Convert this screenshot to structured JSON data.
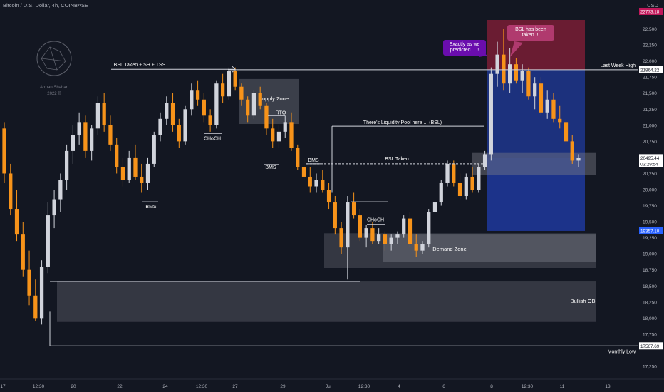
{
  "header": {
    "title": "Bitcoin / U.S. Dollar, 4h, COINBASE",
    "currency": "USD"
  },
  "logo": {
    "line1": "Arman Shaban",
    "line2": "2022 ®"
  },
  "chart_data": {
    "type": "candlestick",
    "y_axis": {
      "min": 17050,
      "max": 22950,
      "ticks": [
        22500,
        22250,
        22000,
        21750,
        21500,
        21250,
        21000,
        20750,
        20500,
        20250,
        20000,
        19750,
        19500,
        19250,
        19000,
        18750,
        18500,
        18250,
        18000,
        17750,
        17250
      ]
    },
    "x_axis": {
      "labels": [
        "17",
        "12:30",
        "20",
        "22",
        "24",
        "12:30",
        "27",
        "29",
        "Jul",
        "12:30",
        "4",
        "6",
        "8",
        "12:30",
        "11",
        "13"
      ]
    },
    "price_labels": [
      {
        "value": "22773.18",
        "price": 22773,
        "color": "#c2185b"
      },
      {
        "value": "21871.71",
        "price": 21872,
        "color": "#2a2e39"
      },
      {
        "value": "21864.22",
        "price": 21864,
        "color": "#ffffff"
      },
      {
        "value": "20495.44",
        "price": 20495,
        "color": "#ffffff",
        "extra": "03:29:54"
      },
      {
        "value": "19357.10",
        "price": 19357,
        "color": "#2962ff"
      },
      {
        "value": "17567.69",
        "price": 17568,
        "color": "#ffffff"
      }
    ],
    "zones": [
      {
        "label": "Supply Zone"
      },
      {
        "label": "Demand Zone"
      },
      {
        "label": "Bullish OB"
      }
    ],
    "annotations": [
      {
        "text": "BSL Taken + SH + TSS",
        "price": 21872
      },
      {
        "text": "CHoCH",
        "price": 20873
      },
      {
        "text": "BMS",
        "price": 19810
      },
      {
        "text": "RTO",
        "price": 21150
      },
      {
        "text": "BMS",
        "price": 20390
      },
      {
        "text": "BMS",
        "price": 20400
      },
      {
        "text": "There's Liquidity Pool here ... (BSL)",
        "price": 20985
      },
      {
        "text": "BSL Taken",
        "price": 20400
      },
      {
        "text": "CHoCH",
        "price": 19460
      },
      {
        "text": "Last Week High",
        "price": 21864
      },
      {
        "text": "Monthly Low",
        "price": 17568
      }
    ],
    "callouts": [
      {
        "text": "Exactly as we predicted ... !",
        "color": "#6a0dad"
      },
      {
        "text": "BSL has been taken !!!",
        "color": "#b03a6e"
      }
    ],
    "position": {
      "entry": 20495,
      "target": 22773,
      "stop": 19357
    },
    "colors": {
      "up": "#d1d4dc",
      "down": "#f7931a",
      "background": "#131722"
    },
    "series": [
      {
        "name": "",
        "ohlc": [
          [
            20950,
            21050,
            20100,
            20250
          ],
          [
            20250,
            20400,
            19600,
            19700
          ],
          [
            19700,
            20000,
            19200,
            19300
          ],
          [
            19300,
            19500,
            18650,
            18750
          ],
          [
            18750,
            19050,
            18200,
            18350
          ],
          [
            18350,
            18600,
            17950,
            18000
          ],
          [
            18000,
            18900,
            17900,
            18800
          ],
          [
            18800,
            19800,
            18700,
            19600
          ],
          [
            19600,
            20000,
            19400,
            19850
          ],
          [
            19850,
            20250,
            19650,
            20150
          ],
          [
            20150,
            20700,
            20000,
            20600
          ],
          [
            20600,
            21000,
            20400,
            20850
          ],
          [
            20850,
            21200,
            20700,
            21050
          ],
          [
            21050,
            21150,
            20500,
            20600
          ],
          [
            20600,
            21000,
            20450,
            20950
          ],
          [
            20950,
            21450,
            20850,
            21350
          ],
          [
            21350,
            21500,
            20900,
            21000
          ],
          [
            21000,
            21150,
            20600,
            20700
          ],
          [
            20700,
            20800,
            20250,
            20350
          ],
          [
            20350,
            20500,
            20050,
            20150
          ],
          [
            20150,
            20600,
            20100,
            20500
          ],
          [
            20500,
            20700,
            20150,
            20200
          ],
          [
            20200,
            20400,
            19950,
            20100
          ],
          [
            20100,
            20500,
            20000,
            20400
          ],
          [
            20400,
            20900,
            20350,
            20850
          ],
          [
            20850,
            21200,
            20750,
            21100
          ],
          [
            21100,
            21450,
            21000,
            21350
          ],
          [
            21350,
            21500,
            20900,
            21000
          ],
          [
            21000,
            21100,
            20650,
            20750
          ],
          [
            20750,
            21300,
            20700,
            21250
          ],
          [
            21250,
            21650,
            21150,
            21550
          ],
          [
            21550,
            21700,
            21300,
            21400
          ],
          [
            21400,
            21500,
            21050,
            21150
          ],
          [
            21150,
            21250,
            20900,
            21000
          ],
          [
            21000,
            21700,
            20950,
            21650
          ],
          [
            21650,
            21800,
            21350,
            21450
          ],
          [
            21450,
            21900,
            21400,
            21850
          ],
          [
            21850,
            21900,
            21550,
            21600
          ],
          [
            21600,
            21650,
            21300,
            21400
          ],
          [
            21400,
            21450,
            21050,
            21150
          ],
          [
            21150,
            21550,
            21100,
            21500
          ],
          [
            21500,
            21600,
            21250,
            21300
          ],
          [
            21300,
            21350,
            20850,
            20950
          ],
          [
            20950,
            21100,
            20650,
            20750
          ],
          [
            20750,
            21000,
            20650,
            20900
          ],
          [
            20900,
            21150,
            20800,
            21050
          ],
          [
            21050,
            21200,
            20600,
            20650
          ],
          [
            20650,
            20700,
            20300,
            20350
          ],
          [
            20350,
            20500,
            20150,
            20200
          ],
          [
            20200,
            20350,
            19950,
            20050
          ],
          [
            20050,
            20250,
            19950,
            20150
          ],
          [
            20150,
            20300,
            19950,
            20000
          ],
          [
            20000,
            20100,
            19700,
            19800
          ],
          [
            19800,
            19900,
            19300,
            19400
          ],
          [
            19400,
            19500,
            19000,
            19100
          ],
          [
            19100,
            19900,
            18600,
            19800
          ],
          [
            19800,
            19950,
            19550,
            19600
          ],
          [
            19600,
            19700,
            19200,
            19250
          ],
          [
            19250,
            19450,
            19100,
            19400
          ],
          [
            19400,
            19500,
            19150,
            19200
          ],
          [
            19200,
            19400,
            19150,
            19300
          ],
          [
            19300,
            19350,
            19050,
            19150
          ],
          [
            19150,
            19300,
            19050,
            19250
          ],
          [
            19250,
            19350,
            19150,
            19300
          ],
          [
            19300,
            19600,
            19250,
            19550
          ],
          [
            19550,
            19650,
            19100,
            19150
          ],
          [
            19150,
            19300,
            18950,
            19050
          ],
          [
            19050,
            19200,
            19000,
            19150
          ],
          [
            19150,
            19700,
            19100,
            19650
          ],
          [
            19650,
            19850,
            19600,
            19800
          ],
          [
            19800,
            20150,
            19750,
            20100
          ],
          [
            20100,
            20450,
            20050,
            20400
          ],
          [
            20400,
            20450,
            20050,
            20100
          ],
          [
            20100,
            20250,
            19850,
            19900
          ],
          [
            19900,
            20250,
            19850,
            20200
          ],
          [
            20200,
            20350,
            19950,
            20000
          ],
          [
            20000,
            20400,
            19950,
            20350
          ],
          [
            20350,
            20600,
            20300,
            20550
          ],
          [
            20550,
            21900,
            20450,
            21800
          ],
          [
            21800,
            22300,
            21600,
            22100
          ],
          [
            22100,
            22500,
            21550,
            21650
          ],
          [
            21650,
            22200,
            21500,
            21950
          ],
          [
            21950,
            22050,
            21650,
            21700
          ],
          [
            21700,
            21950,
            21500,
            21850
          ],
          [
            21850,
            21900,
            21400,
            21450
          ],
          [
            21450,
            21750,
            21250,
            21650
          ],
          [
            21650,
            21750,
            21150,
            21200
          ],
          [
            21200,
            21550,
            21100,
            21400
          ],
          [
            21400,
            21500,
            21050,
            21100
          ],
          [
            21100,
            21300,
            20950,
            21050
          ],
          [
            21050,
            21100,
            20700,
            20750
          ],
          [
            20750,
            20850,
            20400,
            20450
          ],
          [
            20450,
            20550,
            20350,
            20495
          ]
        ]
      }
    ]
  }
}
